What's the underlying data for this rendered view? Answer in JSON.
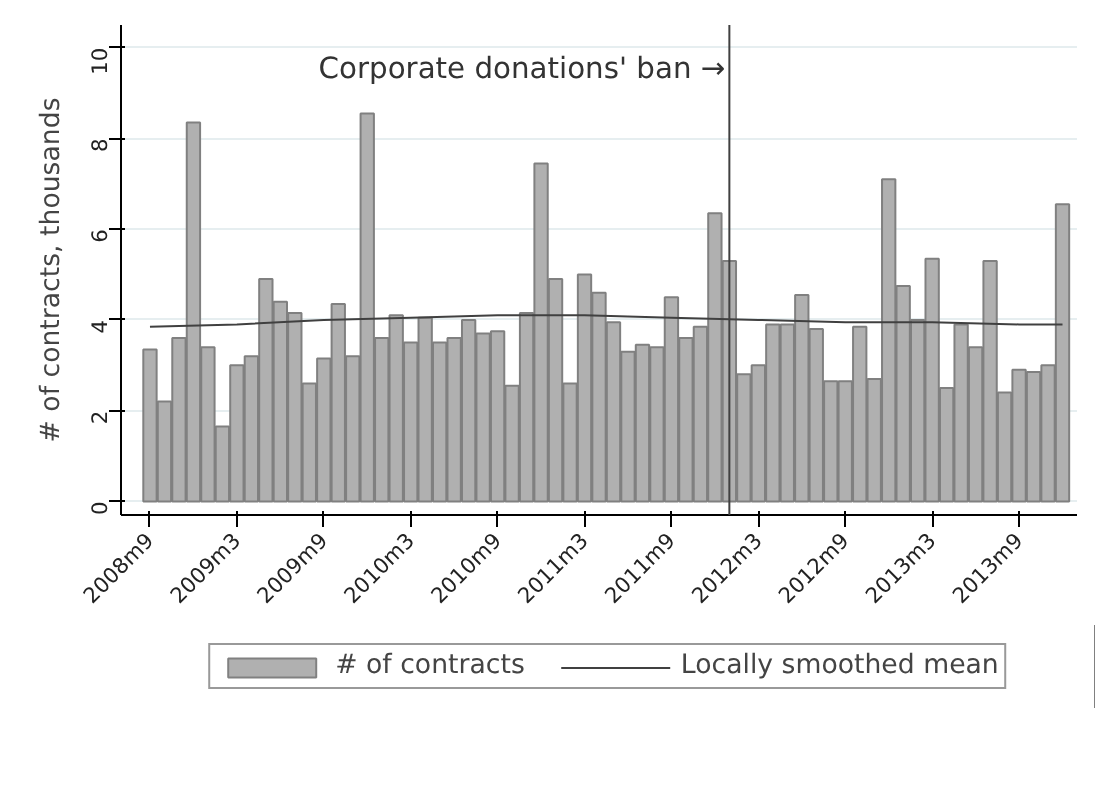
{
  "chart_data": {
    "type": "bar",
    "ylabel": "# of contracts, thousands",
    "x": [
      "2008-09",
      "2008-10",
      "2008-11",
      "2008-12",
      "2009-01",
      "2009-02",
      "2009-03",
      "2009-04",
      "2009-05",
      "2009-06",
      "2009-07",
      "2009-08",
      "2009-09",
      "2009-10",
      "2009-11",
      "2009-12",
      "2010-01",
      "2010-02",
      "2010-03",
      "2010-04",
      "2010-05",
      "2010-06",
      "2010-07",
      "2010-08",
      "2010-09",
      "2010-10",
      "2010-11",
      "2010-12",
      "2011-01",
      "2011-02",
      "2011-03",
      "2011-04",
      "2011-05",
      "2011-06",
      "2011-07",
      "2011-08",
      "2011-09",
      "2011-10",
      "2011-11",
      "2011-12",
      "2012-01",
      "2012-02",
      "2012-03",
      "2012-04",
      "2012-05",
      "2012-06",
      "2012-07",
      "2012-08",
      "2012-09",
      "2012-10",
      "2012-11",
      "2012-12",
      "2013-01",
      "2013-02",
      "2013-03",
      "2013-04",
      "2013-05",
      "2013-06",
      "2013-07",
      "2013-08",
      "2013-09",
      "2013-10",
      "2013-11",
      "2013-12"
    ],
    "series": [
      {
        "name": "# of contracts",
        "color": "#b0b0b0",
        "values": [
          3.35,
          2.2,
          3.6,
          8.35,
          3.4,
          1.65,
          3.0,
          3.2,
          4.9,
          4.4,
          4.15,
          2.6,
          3.15,
          4.35,
          3.2,
          8.55,
          3.6,
          4.1,
          3.5,
          4.05,
          3.5,
          3.6,
          4.0,
          3.7,
          3.75,
          2.55,
          4.15,
          7.45,
          4.9,
          2.6,
          5.0,
          4.6,
          3.95,
          3.3,
          3.45,
          3.4,
          4.5,
          3.6,
          3.85,
          6.35,
          5.3,
          2.8,
          3.0,
          3.9,
          3.9,
          4.55,
          3.8,
          2.65,
          2.65,
          3.85,
          2.7,
          7.1,
          4.75,
          4.0,
          5.35,
          2.5,
          3.9,
          3.4,
          5.3,
          2.4,
          2.9,
          2.85,
          3.0,
          6.55
        ]
      },
      {
        "name": "Locally smoothed mean",
        "type": "line",
        "color": "#404040",
        "x": [
          "2008-09",
          "2009-03",
          "2009-09",
          "2010-03",
          "2010-09",
          "2011-03",
          "2011-09",
          "2012-03",
          "2012-09",
          "2013-03",
          "2013-09",
          "2013-12"
        ],
        "values": [
          3.85,
          3.9,
          4.0,
          4.05,
          4.1,
          4.1,
          4.05,
          4.0,
          3.95,
          3.95,
          3.9,
          3.9
        ]
      }
    ],
    "xlim": [
      "2008-07",
      "2014-01"
    ],
    "xticks": [
      {
        "value": "2008-09",
        "label": "2008m9"
      },
      {
        "value": "2009-03",
        "label": "2009m3"
      },
      {
        "value": "2009-09",
        "label": "2009m9"
      },
      {
        "value": "2010-03",
        "label": "2010m3"
      },
      {
        "value": "2010-09",
        "label": "2010m9"
      },
      {
        "value": "2011-03",
        "label": "2011m3"
      },
      {
        "value": "2011-09",
        "label": "2011m9"
      },
      {
        "value": "2012-03",
        "label": "2012m3"
      },
      {
        "value": "2012-09",
        "label": "2012m9"
      },
      {
        "value": "2013-03",
        "label": "2013m3"
      },
      {
        "value": "2013-09",
        "label": "2013m9"
      }
    ],
    "ylim": [
      -0.3,
      10.5
    ],
    "yticks": [
      0,
      2,
      4,
      6,
      8,
      10
    ],
    "ref_lines": [
      {
        "axis": "x",
        "value": "2012-01",
        "label": "Corporate donations' ban →",
        "color": "#404040"
      }
    ],
    "grid": "y",
    "legend": "bottom"
  }
}
